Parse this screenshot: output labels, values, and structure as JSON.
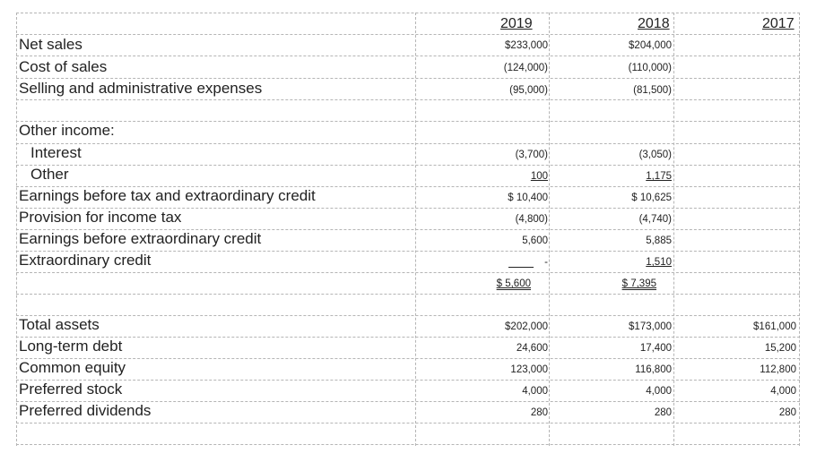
{
  "header": {
    "years": [
      "2019",
      "2018",
      "2017"
    ]
  },
  "income_statement": {
    "rows": [
      {
        "label": "Net sales",
        "v2019": "$233,000",
        "v2018": "$204,000"
      },
      {
        "label": "Cost of sales",
        "v2019": "(124,000)",
        "v2018": "(110,000)"
      },
      {
        "label": "Selling and administrative expenses",
        "v2019": "(95,000)",
        "v2018": "(81,500)"
      }
    ],
    "other_income_header": "Other income:",
    "other_income": [
      {
        "label": "Interest",
        "v2019": "(3,700)",
        "v2018": "(3,050)"
      },
      {
        "label": "Other",
        "v2019": "100",
        "v2018": "1,175"
      }
    ],
    "rows2": [
      {
        "label": "Earnings before tax and extraordinary credit",
        "v2019": "$ 10,400",
        "v2018": "$ 10,625"
      },
      {
        "label": "Provision for income tax",
        "v2019": "(4,800)",
        "v2018": "(4,740)"
      },
      {
        "label": "Earnings before extraordinary credit",
        "v2019": "5,600",
        "v2018": "5,885"
      },
      {
        "label": "Extraordinary credit",
        "v2019": "-",
        "v2018": "1,510"
      }
    ],
    "net": {
      "v2019": "$ 5,600",
      "v2018": "$ 7,395"
    }
  },
  "balance_sheet": {
    "rows": [
      {
        "label": "Total assets",
        "v2019": "$202,000",
        "v2018": "$173,000",
        "v2017": "$161,000"
      },
      {
        "label": "Long-term debt",
        "v2019": "24,600",
        "v2018": "17,400",
        "v2017": "15,200"
      },
      {
        "label": "Common equity",
        "v2019": "123,000",
        "v2018": "116,800",
        "v2017": "112,800"
      },
      {
        "label": "Preferred stock",
        "v2019": "4,000",
        "v2018": "4,000",
        "v2017": "4,000"
      },
      {
        "label": "Preferred dividends",
        "v2019": "280",
        "v2018": "280",
        "v2017": "280"
      }
    ]
  }
}
